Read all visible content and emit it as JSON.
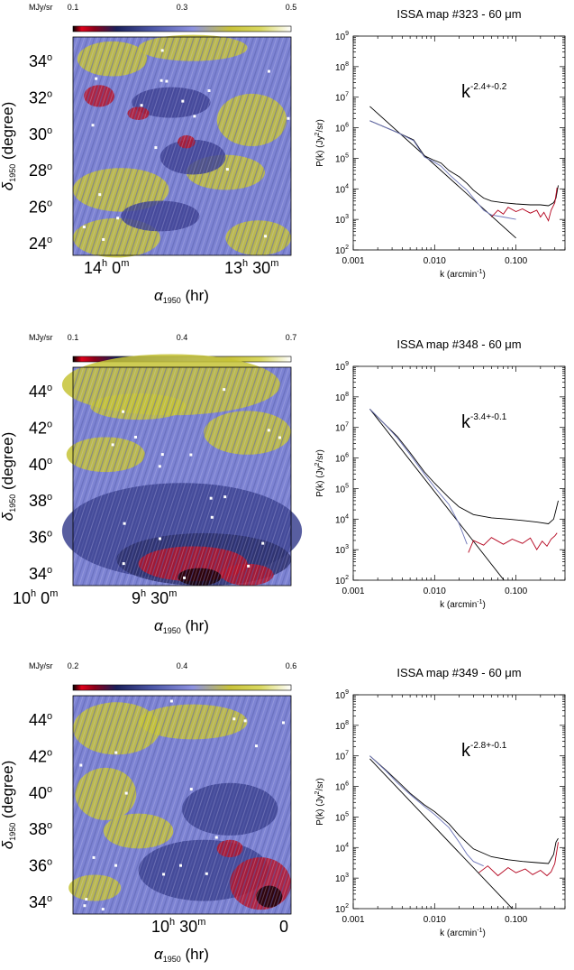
{
  "chart_data": [
    {
      "type": "heatmap",
      "colorbar": {
        "unit": "MJy/sr",
        "ticks": [
          "0.1",
          "0.3",
          "0.5"
        ]
      },
      "ytick_labels": [
        "34",
        "32",
        "30",
        "28",
        "26",
        "24"
      ],
      "y_degree_mark": "o",
      "xticks": [
        {
          "hour": "14",
          "min": "0",
          "h": "h",
          "m": "m"
        },
        {
          "hour": "13",
          "min": "30",
          "h": "h",
          "m": "m"
        }
      ],
      "xlabel": {
        "symbol": "α",
        "sub": "1950",
        "unit": "(hr)"
      },
      "ylabel": {
        "symbol": "δ",
        "sub": "1950",
        "unit": "(degree)"
      },
      "pattern": "upper"
    },
    {
      "type": "line",
      "title": "ISSA map #323 - 60 μm",
      "xscale": "log",
      "yscale": "log",
      "xlim": [
        0.001,
        0.4
      ],
      "ylim": [
        100,
        1000000000
      ],
      "xtick_labels": [
        "0.001",
        "0.010",
        "0.100"
      ],
      "ytick_exponents": [
        "2",
        "3",
        "4",
        "5",
        "6",
        "7",
        "8",
        "9"
      ],
      "xlabel": {
        "base": "k (arcmin",
        "sup": "-1",
        "close": ")"
      },
      "ylabel": {
        "base": "P(k) (Jy",
        "sup": "2",
        "close": "/sr)"
      },
      "annotation": {
        "base": "k",
        "sup": "-2.4+-0.2"
      },
      "colors": {
        "total": "#000000",
        "noise": "#b3001b",
        "corrected": "#6c74b8",
        "fit": "#000000"
      },
      "fit": {
        "slope": -2.4,
        "k": [
          0.0016,
          0.1
        ],
        "p_at_first": 5000000
      },
      "series": [
        {
          "role": "total",
          "k": [
            0.0016,
            0.0035,
            0.0055,
            0.0075,
            0.0095,
            0.012,
            0.015,
            0.02,
            0.025,
            0.03,
            0.04,
            0.05,
            0.07,
            0.1,
            0.15,
            0.2,
            0.25,
            0.29,
            0.31,
            0.33
          ],
          "p": [
            1700000,
            700000,
            400000,
            120000,
            90000,
            70000,
            40000,
            25000,
            15000,
            9000,
            5000,
            4000,
            3500,
            3200,
            3000,
            3000,
            2800,
            3500,
            5000,
            13000
          ]
        },
        {
          "role": "corrected",
          "k": [
            0.0016,
            0.0035,
            0.0055,
            0.0075,
            0.0095,
            0.012,
            0.015,
            0.02,
            0.025,
            0.03,
            0.04,
            0.05,
            0.07,
            0.1
          ],
          "p": [
            1700000,
            700000,
            380000,
            110000,
            80000,
            55000,
            30000,
            15000,
            9000,
            5000,
            2000,
            1400,
            1200,
            1000
          ]
        },
        {
          "role": "noise",
          "k": [
            0.05,
            0.06,
            0.07,
            0.08,
            0.1,
            0.12,
            0.15,
            0.18,
            0.2,
            0.22,
            0.25,
            0.27,
            0.3,
            0.32
          ],
          "p": [
            1200,
            2000,
            1500,
            2500,
            1800,
            2200,
            1600,
            2000,
            1200,
            1700,
            900,
            2000,
            3500,
            11000
          ]
        }
      ]
    },
    {
      "type": "heatmap",
      "colorbar": {
        "unit": "MJy/sr",
        "ticks": [
          "0.1",
          "0.4",
          "0.7"
        ]
      },
      "ytick_labels": [
        "44",
        "42",
        "40",
        "38",
        "36",
        "34"
      ],
      "y_degree_mark": "o",
      "xticks": [
        {
          "hour": "10",
          "min": "0",
          "h": "h",
          "m": "m"
        },
        {
          "hour": "9",
          "min": "30",
          "h": "h",
          "m": "m"
        }
      ],
      "xlabel": {
        "symbol": "α",
        "sub": "1950",
        "unit": "(hr)"
      },
      "ylabel": {
        "symbol": "δ",
        "sub": "1950",
        "unit": "(degree)"
      },
      "pattern": "lower-hot"
    },
    {
      "type": "line",
      "title": "ISSA map #348 - 60 μm",
      "xscale": "log",
      "yscale": "log",
      "xlim": [
        0.001,
        0.4
      ],
      "ylim": [
        100,
        1000000000
      ],
      "xtick_labels": [
        "0.001",
        "0.010",
        "0.100"
      ],
      "ytick_exponents": [
        "2",
        "3",
        "4",
        "5",
        "6",
        "7",
        "8",
        "9"
      ],
      "xlabel": {
        "base": "k (arcmin",
        "sup": "-1",
        "close": ")"
      },
      "ylabel": {
        "base": "P(k) (Jy",
        "sup": "2",
        "close": "/sr)"
      },
      "annotation": {
        "base": "k",
        "sup": "-3.4+-0.1"
      },
      "colors": {
        "total": "#000000",
        "noise": "#b3001b",
        "corrected": "#6c74b8",
        "fit": "#000000"
      },
      "fit": {
        "slope": -3.4,
        "k": [
          0.0016,
          0.1
        ],
        "p_at_first": 40000000
      },
      "series": [
        {
          "role": "total",
          "k": [
            0.0016,
            0.0025,
            0.0035,
            0.005,
            0.0075,
            0.01,
            0.015,
            0.02,
            0.03,
            0.05,
            0.08,
            0.12,
            0.18,
            0.25,
            0.29,
            0.31,
            0.33
          ],
          "p": [
            40000000,
            12000000,
            5000000,
            1500000,
            350000,
            150000,
            50000,
            25000,
            14000,
            11000,
            10000,
            9000,
            8000,
            7000,
            10000,
            20000,
            40000
          ]
        },
        {
          "role": "corrected",
          "k": [
            0.0016,
            0.0025,
            0.0035,
            0.005,
            0.0075,
            0.01,
            0.015,
            0.02,
            0.025
          ],
          "p": [
            40000000,
            12000000,
            4500000,
            1300000,
            300000,
            110000,
            30000,
            7000,
            1500
          ]
        },
        {
          "role": "noise",
          "k": [
            0.026,
            0.03,
            0.04,
            0.05,
            0.07,
            0.09,
            0.12,
            0.15,
            0.18,
            0.21,
            0.24,
            0.27,
            0.3,
            0.32
          ],
          "p": [
            800,
            2000,
            1400,
            2500,
            1500,
            2200,
            1600,
            2400,
            1000,
            1900,
            1300,
            2200,
            2800,
            3500
          ]
        }
      ]
    },
    {
      "type": "heatmap",
      "colorbar": {
        "unit": "MJy/sr",
        "ticks": [
          "0.2",
          "0.4",
          "0.6"
        ]
      },
      "ytick_labels": [
        "44",
        "42",
        "40",
        "38",
        "36",
        "34"
      ],
      "y_degree_mark": "o",
      "xticks": [
        {
          "hour": "10",
          "min": "30",
          "h": "h",
          "m": "m"
        },
        {
          "hour": "",
          "min": "0",
          "h": "",
          "m": ""
        }
      ],
      "xlabel": {
        "symbol": "α",
        "sub": "1950",
        "unit": "(hr)"
      },
      "ylabel": {
        "symbol": "δ",
        "sub": "1950",
        "unit": "(degree)"
      },
      "pattern": "left-yellow"
    },
    {
      "type": "line",
      "title": "ISSA map #349 - 60 μm",
      "xscale": "log",
      "yscale": "log",
      "xlim": [
        0.001,
        0.4
      ],
      "ylim": [
        100,
        1000000000
      ],
      "xtick_labels": [
        "0.001",
        "0.010",
        "0.100"
      ],
      "ytick_exponents": [
        "2",
        "3",
        "4",
        "5",
        "6",
        "7",
        "8",
        "9"
      ],
      "xlabel": {
        "base": "k (arcmin",
        "sup": "-1",
        "close": ")"
      },
      "ylabel": {
        "base": "P(k) (Jy",
        "sup": "2",
        "close": "/sr)"
      },
      "annotation": {
        "base": "k",
        "sup": "-2.8+-0.1"
      },
      "colors": {
        "total": "#000000",
        "noise": "#b3001b",
        "corrected": "#6c74b8",
        "fit": "#000000"
      },
      "fit": {
        "slope": -2.8,
        "k": [
          0.0016,
          0.1
        ],
        "p_at_first": 8000000
      },
      "series": [
        {
          "role": "total",
          "k": [
            0.0016,
            0.0025,
            0.0035,
            0.005,
            0.0075,
            0.01,
            0.015,
            0.02,
            0.03,
            0.05,
            0.08,
            0.12,
            0.18,
            0.25,
            0.29,
            0.31,
            0.33
          ],
          "p": [
            10000000,
            3500000,
            1500000,
            600000,
            250000,
            150000,
            60000,
            25000,
            9000,
            5000,
            4000,
            3500,
            3200,
            3000,
            6000,
            15000,
            20000
          ]
        },
        {
          "role": "corrected",
          "k": [
            0.0016,
            0.0025,
            0.0035,
            0.005,
            0.0075,
            0.01,
            0.015,
            0.02,
            0.025,
            0.03,
            0.04
          ],
          "p": [
            10000000,
            3300000,
            1300000,
            550000,
            220000,
            120000,
            45000,
            15000,
            6000,
            3500,
            2500
          ]
        },
        {
          "role": "noise",
          "k": [
            0.035,
            0.045,
            0.06,
            0.08,
            0.1,
            0.13,
            0.16,
            0.2,
            0.24,
            0.27,
            0.3,
            0.33
          ],
          "p": [
            1500,
            2500,
            1200,
            2200,
            1500,
            2000,
            1300,
            1800,
            1200,
            1600,
            3000,
            15000
          ]
        }
      ]
    }
  ]
}
